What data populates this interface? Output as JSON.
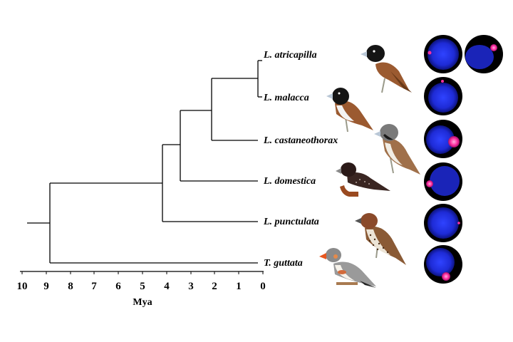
{
  "tree": {
    "taxa": [
      {
        "name": "L. atricapilla",
        "cells": 2
      },
      {
        "name": "L. malacca",
        "cells": 1
      },
      {
        "name": "L. castaneothorax",
        "cells": 1
      },
      {
        "name": "L. domestica",
        "cells": 1
      },
      {
        "name": "L. punctulata",
        "cells": 1
      },
      {
        "name": "T. guttata",
        "cells": 1
      }
    ],
    "node_ages_mya": {
      "root": 8.8,
      "lonchura": 4.1,
      "domestica_split": 3.4,
      "castaneo_split": 2.1,
      "atri_malacca": 0.2
    }
  },
  "axis": {
    "ticks": [
      "10",
      "9",
      "8",
      "7",
      "6",
      "5",
      "4",
      "3",
      "2",
      "1",
      "0"
    ],
    "title": "Mya",
    "range": [
      10,
      0
    ]
  },
  "colors": {
    "nucleus": "#1e2bd6",
    "signal": "#ff2fa0",
    "cell_bg": "#000000"
  }
}
